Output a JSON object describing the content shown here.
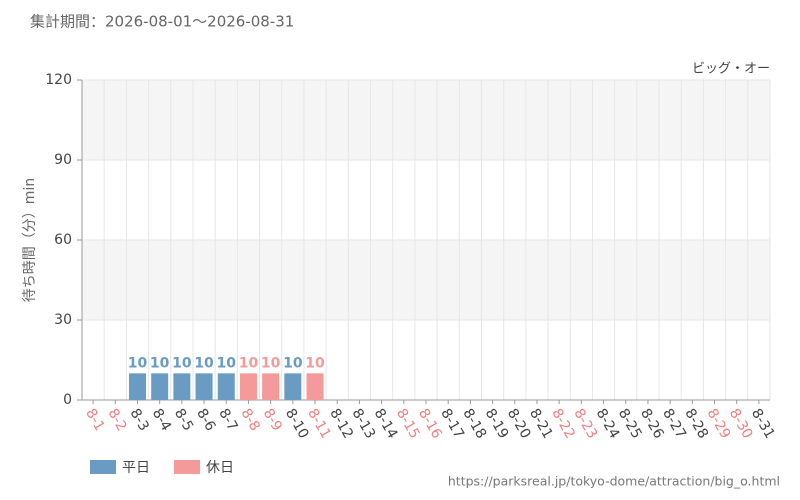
{
  "chart_data": {
    "type": "bar",
    "title": "集計期間：2026-08-01〜2026-08-31",
    "subtitle": "ビッグ・オー",
    "y_label": "待ち時間（分）min",
    "source": "https://parksreal.jp/tokyo-dome/attraction/big_o.html",
    "categories": [
      "8-1",
      "8-2",
      "8-3",
      "8-4",
      "8-5",
      "8-6",
      "8-7",
      "8-8",
      "8-9",
      "8-10",
      "8-11",
      "8-12",
      "8-13",
      "8-14",
      "8-15",
      "8-16",
      "8-17",
      "8-18",
      "8-19",
      "8-20",
      "8-21",
      "8-22",
      "8-23",
      "8-24",
      "8-25",
      "8-26",
      "8-27",
      "8-28",
      "8-29",
      "8-30",
      "8-31"
    ],
    "category_label_colors": [
      "#f08080",
      "#f08080",
      "#444",
      "#444",
      "#444",
      "#444",
      "#444",
      "#f08080",
      "#f08080",
      "#444",
      "#f08080",
      "#444",
      "#444",
      "#444",
      "#f08080",
      "#f08080",
      "#444",
      "#444",
      "#444",
      "#444",
      "#444",
      "#f08080",
      "#f08080",
      "#444",
      "#444",
      "#444",
      "#444",
      "#444",
      "#f08080",
      "#f08080",
      "#444"
    ],
    "series": [
      {
        "name": "平日",
        "color": "#6a9bc3",
        "values": [
          null,
          null,
          10,
          10,
          10,
          10,
          10,
          null,
          null,
          10,
          null,
          null,
          null,
          null,
          null,
          null,
          null,
          null,
          null,
          null,
          null,
          null,
          null,
          null,
          null,
          null,
          null,
          null,
          null,
          null,
          null
        ]
      },
      {
        "name": "休日",
        "color": "#f59a9a",
        "values": [
          null,
          null,
          null,
          null,
          null,
          null,
          null,
          10,
          10,
          null,
          10,
          null,
          null,
          null,
          null,
          null,
          null,
          null,
          null,
          null,
          null,
          null,
          null,
          null,
          null,
          null,
          null,
          null,
          null,
          null,
          null
        ]
      }
    ],
    "ylim": [
      0,
      120
    ],
    "yticks": [
      0,
      30,
      60,
      90,
      120
    ],
    "grid": true
  }
}
